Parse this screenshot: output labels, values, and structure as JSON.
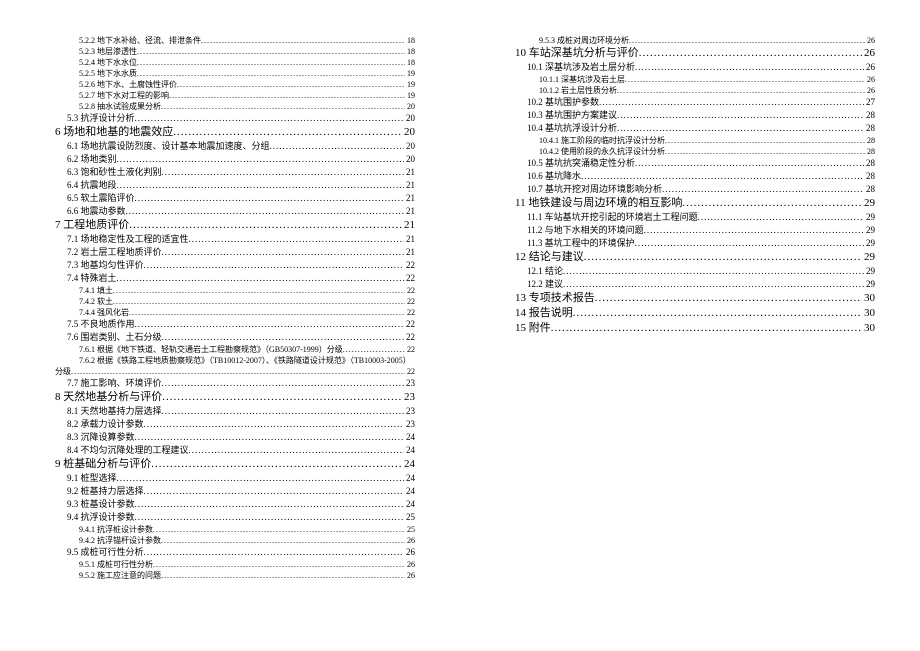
{
  "left": [
    {
      "lvl": 3,
      "t": "5.2.2 地下水补给、径流、排泄条件",
      "p": "18"
    },
    {
      "lvl": 3,
      "t": "5.2.3 地层渗透性",
      "p": "18"
    },
    {
      "lvl": 3,
      "t": "5.2.4 地下水水位",
      "p": "18"
    },
    {
      "lvl": 3,
      "t": "5.2.5 地下水水质",
      "p": "19"
    },
    {
      "lvl": 3,
      "t": "5.2.6 地下水、土腐蚀性评价",
      "p": "19"
    },
    {
      "lvl": 3,
      "t": "5.2.7 地下水对工程的影响",
      "p": "19"
    },
    {
      "lvl": 3,
      "t": "5.2.8 抽水试验成果分析",
      "p": "20"
    },
    {
      "lvl": 2,
      "t": "5.3 抗浮设计分析",
      "p": "20"
    },
    {
      "lvl": 1,
      "t": "6 场地和地基的地震效应",
      "p": "20"
    },
    {
      "lvl": 2,
      "t": "6.1 场地抗震设防烈度、设计基本地震加速度、分组",
      "p": "20"
    },
    {
      "lvl": 2,
      "t": "6.2 场地类别",
      "p": "20"
    },
    {
      "lvl": 2,
      "t": "6.3 饱和砂性土液化判别",
      "p": "21"
    },
    {
      "lvl": 2,
      "t": "6.4 抗震地段",
      "p": "21"
    },
    {
      "lvl": 2,
      "t": "6.5 软土震陷评价",
      "p": "21"
    },
    {
      "lvl": 2,
      "t": "6.6 地震动参数",
      "p": "21"
    },
    {
      "lvl": 1,
      "t": "7 工程地质评价",
      "p": "21"
    },
    {
      "lvl": 2,
      "t": "7.1 场地稳定性及工程的适宜性",
      "p": "21"
    },
    {
      "lvl": 2,
      "t": "7.2 岩土层工程地质评价",
      "p": "21"
    },
    {
      "lvl": 2,
      "t": "7.3 地基均匀性评价",
      "p": "22"
    },
    {
      "lvl": 2,
      "t": "7.4 特殊岩土",
      "p": "22"
    },
    {
      "lvl": 3,
      "t": "7.4.1 填土",
      "p": "22"
    },
    {
      "lvl": 3,
      "t": "7.4.2 软土",
      "p": "22"
    },
    {
      "lvl": 3,
      "t": "7.4.4 强风化岩",
      "p": "22"
    },
    {
      "lvl": 2,
      "t": "7.5 不良地质作用",
      "p": "22"
    },
    {
      "lvl": 2,
      "t": "7.6 围岩类别、土石分级",
      "p": "22"
    },
    {
      "lvl": 3,
      "t": "7.6.1 根据《地下铁道、轻轨交通岩土工程勘察规范》（GB50307-1999）分级",
      "p": "22"
    },
    {
      "lvl": 3,
      "t": "7.6.2 根据《铁路工程地质勘察规范》（TB10012-2007）、《铁路隧道设计规范》（TB10003-2005）",
      "p": "",
      "wrap": true
    },
    {
      "lvl": 3,
      "t": "分级",
      "p": "22",
      "wrapcont": true
    },
    {
      "lvl": 2,
      "t": "7.7 施工影响、环境评价",
      "p": "23"
    },
    {
      "lvl": 1,
      "t": "8 天然地基分析与评价",
      "p": "23"
    },
    {
      "lvl": 2,
      "t": "8.1 天然地基持力层选择",
      "p": "23"
    },
    {
      "lvl": 2,
      "t": "8.2 承载力设计参数",
      "p": "23"
    },
    {
      "lvl": 2,
      "t": "8.3 沉降设算参数",
      "p": "24"
    },
    {
      "lvl": 2,
      "t": "8.4 不均匀沉降处理的工程建议",
      "p": "24"
    },
    {
      "lvl": 1,
      "t": "9 桩基础分析与评价",
      "p": "24"
    },
    {
      "lvl": 2,
      "t": "9.1 桩型选择",
      "p": "24"
    },
    {
      "lvl": 2,
      "t": "9.2 桩基持力层选择",
      "p": "24"
    },
    {
      "lvl": 2,
      "t": "9.3 桩基设计参数",
      "p": "24"
    },
    {
      "lvl": 2,
      "t": "9.4 抗浮设计参数",
      "p": "25"
    },
    {
      "lvl": 3,
      "t": "9.4.1 抗浮桩设计参数",
      "p": "25"
    },
    {
      "lvl": 3,
      "t": "9.4.2 抗浮锚杆设计参数",
      "p": "26"
    },
    {
      "lvl": 2,
      "t": "9.5 成桩可行性分析",
      "p": "26"
    },
    {
      "lvl": 3,
      "t": "9.5.1 成桩可行性分析",
      "p": "26"
    },
    {
      "lvl": 3,
      "t": "9.5.2 施工应注意的问题",
      "p": "26"
    }
  ],
  "right": [
    {
      "lvl": 3,
      "t": "9.5.3 成桩对周边环境分析",
      "p": "26"
    },
    {
      "lvl": 1,
      "t": "10 车站深基坑分析与评价",
      "p": "26"
    },
    {
      "lvl": 2,
      "t": "10.1 深基坑涉及岩土层分析",
      "p": "26"
    },
    {
      "lvl": 3,
      "t": "10.1.1 深基坑涉及岩土层",
      "p": "26"
    },
    {
      "lvl": 3,
      "t": "10.1.2 岩土层性质分析",
      "p": "26"
    },
    {
      "lvl": 2,
      "t": "10.2 基坑围护参数",
      "p": "27"
    },
    {
      "lvl": 2,
      "t": "10.3 基坑围护方案建议",
      "p": "28"
    },
    {
      "lvl": 2,
      "t": "10.4 基坑抗浮设计分析",
      "p": "28"
    },
    {
      "lvl": 3,
      "t": "10.4.1 施工阶段的临时抗浮设计分析",
      "p": "28"
    },
    {
      "lvl": 3,
      "t": "10.4.2 使用阶段的永久抗浮设计分析",
      "p": "28"
    },
    {
      "lvl": 2,
      "t": "10.5 基坑抗突涌稳定性分析",
      "p": "28"
    },
    {
      "lvl": 2,
      "t": "10.6 基坑降水",
      "p": "28"
    },
    {
      "lvl": 2,
      "t": "10.7 基坑开挖对周边环境影响分析",
      "p": "28"
    },
    {
      "lvl": 1,
      "t": "11 地铁建设与周边环境的相互影响",
      "p": "29"
    },
    {
      "lvl": 2,
      "t": "11.1 车站基坑开挖引起的环境岩土工程问题",
      "p": "29"
    },
    {
      "lvl": 2,
      "t": "11.2 与地下水相关的环境问题",
      "p": "29"
    },
    {
      "lvl": 2,
      "t": "11.3 基坑工程中的环境保护",
      "p": "29"
    },
    {
      "lvl": 1,
      "t": "12 结论与建议",
      "p": "29"
    },
    {
      "lvl": 2,
      "t": "12.1 结论",
      "p": "29"
    },
    {
      "lvl": 2,
      "t": "12.2 建议",
      "p": "29"
    },
    {
      "lvl": 1,
      "t": "13 专项技术报告",
      "p": "30"
    },
    {
      "lvl": 1,
      "t": "14 报告说明",
      "p": "30"
    },
    {
      "lvl": 1,
      "t": "15 附件",
      "p": "30"
    }
  ]
}
